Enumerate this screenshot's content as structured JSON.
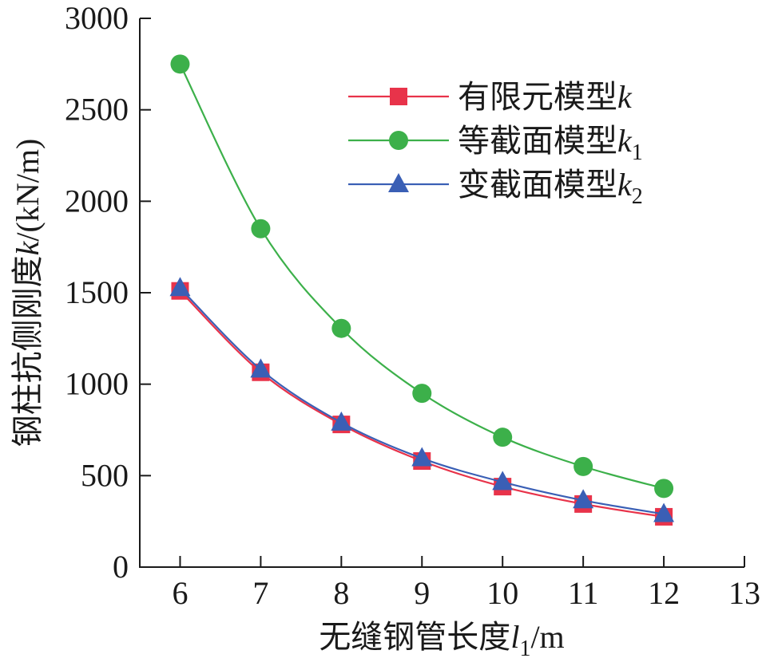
{
  "chart_data": {
    "type": "line",
    "xlabel": {
      "prefix": "无缝钢管长度",
      "var": "l",
      "sub": "1",
      "suffix": "/m"
    },
    "ylabel": {
      "prefix": "钢柱抗侧刚度",
      "var": "k",
      "suffix": "/(kN/m)"
    },
    "xlim": [
      5.5,
      13
    ],
    "ylim": [
      0,
      3000
    ],
    "xticks": [
      6,
      7,
      8,
      9,
      10,
      11,
      12,
      13
    ],
    "yticks": [
      0,
      500,
      1000,
      1500,
      2000,
      2500,
      3000
    ],
    "x": [
      6,
      7,
      8,
      9,
      10,
      11,
      12
    ],
    "grid": false,
    "legend_position": "top-right",
    "series": [
      {
        "name": "有限元模型",
        "var": "k",
        "sub": "",
        "marker": "square",
        "color": "#e8334a",
        "values": [
          1510,
          1065,
          780,
          580,
          440,
          345,
          275
        ]
      },
      {
        "name": "等截面模型",
        "var": "k",
        "sub": "1",
        "marker": "circle",
        "color": "#3cb04a",
        "values": [
          2750,
          1850,
          1305,
          950,
          710,
          550,
          430
        ]
      },
      {
        "name": "变截面模型",
        "var": "k",
        "sub": "2",
        "marker": "triangle",
        "color": "#3a5fb5",
        "values": [
          1525,
          1080,
          790,
          595,
          465,
          365,
          290
        ]
      }
    ]
  }
}
